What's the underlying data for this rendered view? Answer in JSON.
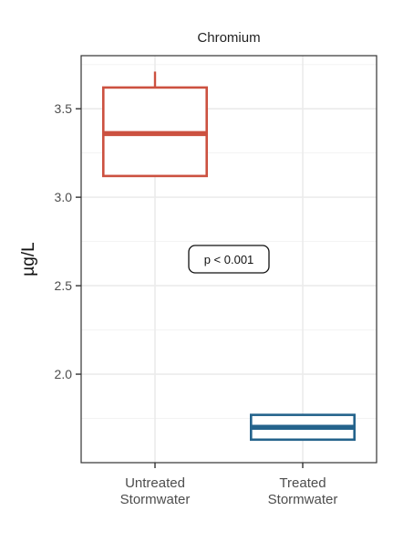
{
  "chart_data": {
    "type": "box",
    "title": "Chromium",
    "xlabel": "",
    "ylabel": "µg/L",
    "ylim": [
      1.5,
      3.8
    ],
    "yticks": [
      "2.0",
      "2.5",
      "3.0",
      "3.5"
    ],
    "grid": true,
    "categories": [
      "Untreated\nStormwater",
      "Treated\nStormwater"
    ],
    "boxes": [
      {
        "category": "Untreated\nStormwater",
        "whisker_low": 3.12,
        "q1": 3.12,
        "median": 3.36,
        "q3": 3.62,
        "whisker_high": 3.71,
        "color": "#cc5140"
      },
      {
        "category": "Treated\nStormwater",
        "whisker_low": 1.63,
        "q1": 1.63,
        "median": 1.7,
        "q3": 1.77,
        "whisker_high": 1.77,
        "color": "#24638c"
      }
    ],
    "annotation": {
      "text": "p < 0.001",
      "x_between": [
        1,
        2
      ],
      "y": 2.65
    }
  }
}
